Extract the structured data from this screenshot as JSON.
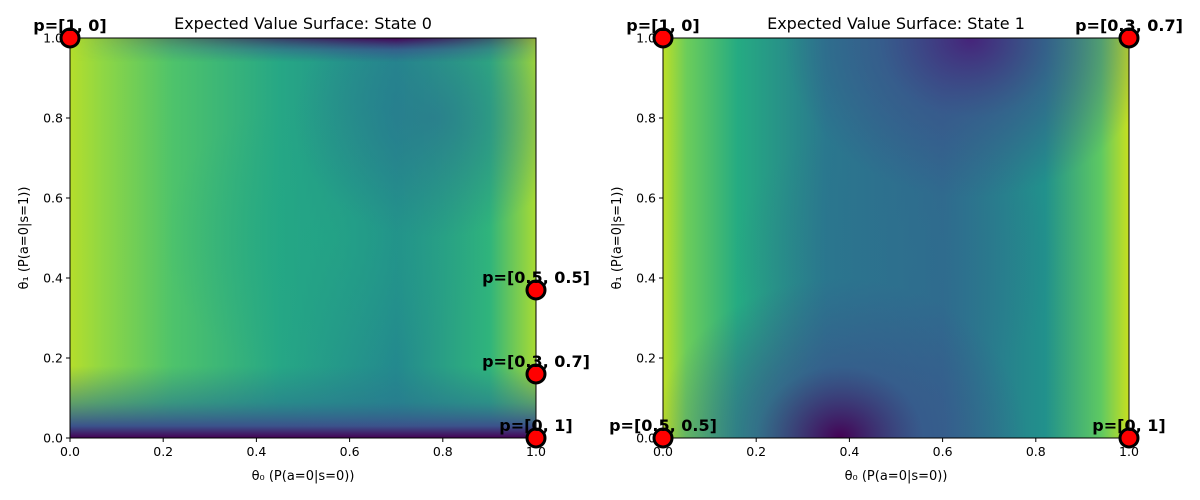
{
  "chart_data": [
    {
      "type": "heatmap",
      "title": "Expected Value Surface: State 0",
      "xlabel": "θ₀  (P(a=0|s=0))",
      "ylabel": "θ₁  (P(a=0|s=1))",
      "xlim": [
        0,
        1
      ],
      "ylim": [
        0,
        1
      ],
      "xticks": [
        "0.0",
        "0.2",
        "0.4",
        "0.6",
        "0.8",
        "1.0"
      ],
      "yticks": [
        "0.0",
        "0.2",
        "0.4",
        "0.6",
        "0.8",
        "1.0"
      ],
      "colormap": "viridis",
      "points": [
        {
          "label": "p=[1, 0]",
          "x": 0.0,
          "y": 1.0
        },
        {
          "label": "p=[0.5, 0.5]",
          "x": 1.0,
          "y": 0.37
        },
        {
          "label": "p=[0.3, 0.7]",
          "x": 1.0,
          "y": 0.16
        },
        {
          "label": "p=[0, 1]",
          "x": 1.0,
          "y": 0.0
        }
      ]
    },
    {
      "type": "heatmap",
      "title": "Expected Value Surface: State 1",
      "xlabel": "θ₀  (P(a=0|s=0))",
      "ylabel": "θ₁  (P(a=0|s=1))",
      "xlim": [
        0,
        1
      ],
      "ylim": [
        0,
        1
      ],
      "xticks": [
        "0.0",
        "0.2",
        "0.4",
        "0.6",
        "0.8",
        "1.0"
      ],
      "yticks": [
        "0.0",
        "0.2",
        "0.4",
        "0.6",
        "0.8",
        "1.0"
      ],
      "colormap": "viridis",
      "points": [
        {
          "label": "p=[1, 0]",
          "x": 0.0,
          "y": 1.0
        },
        {
          "label": "p=[0.3, 0.7]",
          "x": 1.0,
          "y": 1.0
        },
        {
          "label": "p=[0.5, 0.5]",
          "x": 0.0,
          "y": 0.0
        },
        {
          "label": "p=[0, 1]",
          "x": 1.0,
          "y": 0.0
        }
      ]
    }
  ]
}
